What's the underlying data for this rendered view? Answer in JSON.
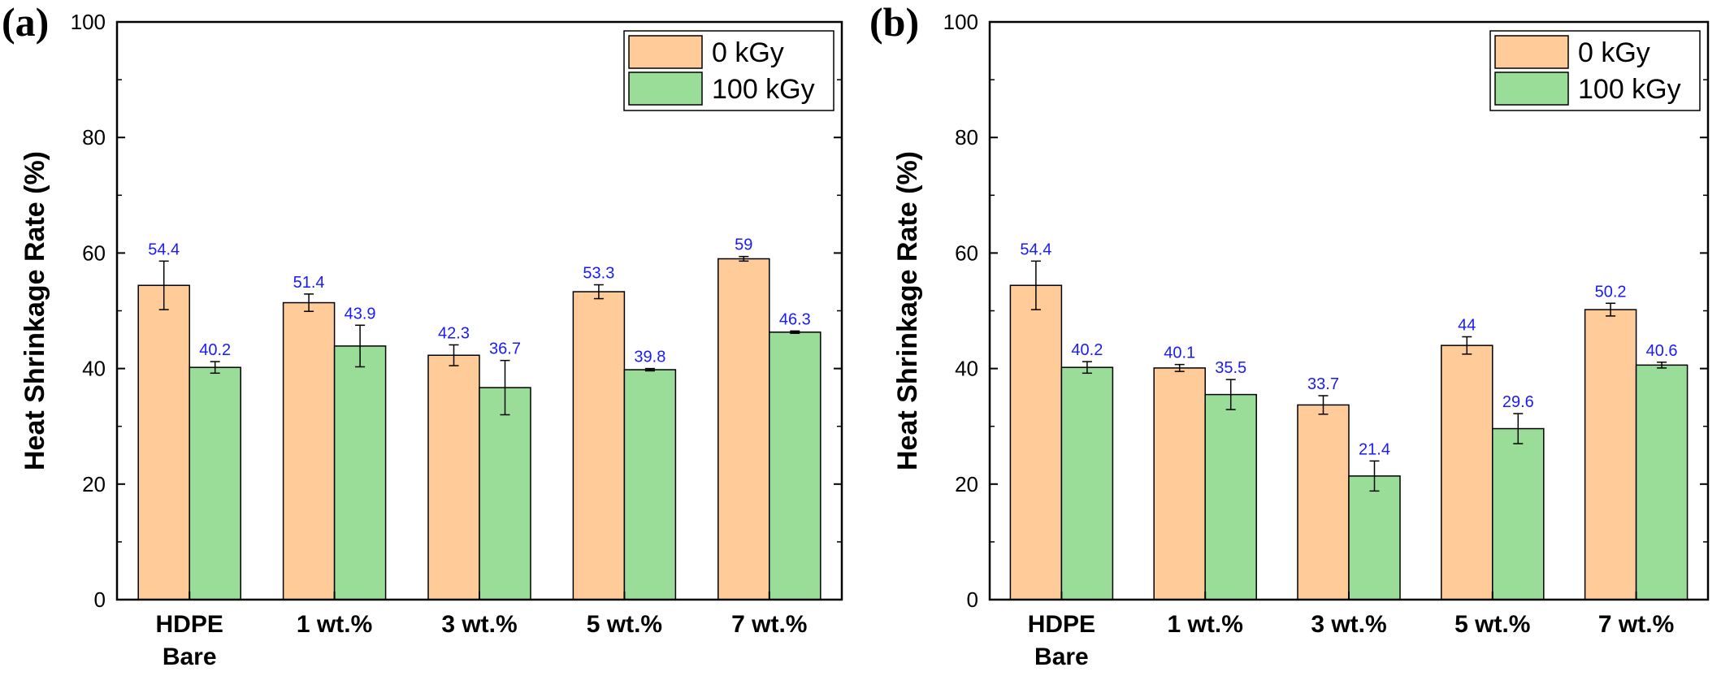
{
  "chart_data": [
    {
      "type": "bar",
      "panel_label": "(a)",
      "categories": [
        [
          "HDPE",
          "Bare"
        ],
        [
          "1 wt.%"
        ],
        [
          "3 wt.%"
        ],
        [
          "5 wt.%"
        ],
        [
          "7 wt.%"
        ]
      ],
      "series": [
        {
          "name": "0 kGy",
          "color": "#FFCC99",
          "values": [
            54.4,
            51.4,
            42.3,
            53.3,
            59
          ],
          "labels": [
            "54.4",
            "51.4",
            "42.3",
            "53.3",
            "59"
          ],
          "errors": [
            4.2,
            1.5,
            1.8,
            1.2,
            0.4
          ]
        },
        {
          "name": "100 kGy",
          "color": "#99DD99",
          "values": [
            40.2,
            43.9,
            36.7,
            39.8,
            46.3
          ],
          "labels": [
            "40.2",
            "43.9",
            "36.7",
            "39.8",
            "46.3"
          ],
          "errors": [
            1.0,
            3.6,
            4.7,
            0.2,
            0.2
          ]
        }
      ],
      "ylabel": "Heat Shrinkage Rate (%)",
      "xlabel": "",
      "ylim": [
        0,
        100
      ],
      "yticks": [
        0,
        20,
        40,
        60,
        80,
        100
      ],
      "legend_position": "top-right",
      "grid": false
    },
    {
      "type": "bar",
      "panel_label": "(b)",
      "categories": [
        [
          "HDPE",
          "Bare"
        ],
        [
          "1 wt.%"
        ],
        [
          "3 wt.%"
        ],
        [
          "5 wt.%"
        ],
        [
          "7 wt.%"
        ]
      ],
      "series": [
        {
          "name": "0 kGy",
          "color": "#FFCC99",
          "values": [
            54.4,
            40.1,
            33.7,
            44,
            50.2
          ],
          "labels": [
            "54.4",
            "40.1",
            "33.7",
            "44",
            "50.2"
          ],
          "errors": [
            4.2,
            0.6,
            1.6,
            1.5,
            1.1
          ]
        },
        {
          "name": "100 kGy",
          "color": "#99DD99",
          "values": [
            40.2,
            35.5,
            21.4,
            29.6,
            40.6
          ],
          "labels": [
            "40.2",
            "35.5",
            "21.4",
            "29.6",
            "40.6"
          ],
          "errors": [
            1.0,
            2.6,
            2.6,
            2.6,
            0.5
          ]
        }
      ],
      "ylabel": "Heat Shrinkage Rate (%)",
      "xlabel": "",
      "ylim": [
        0,
        100
      ],
      "yticks": [
        0,
        20,
        40,
        60,
        80,
        100
      ],
      "legend_position": "top-right",
      "grid": false
    }
  ]
}
